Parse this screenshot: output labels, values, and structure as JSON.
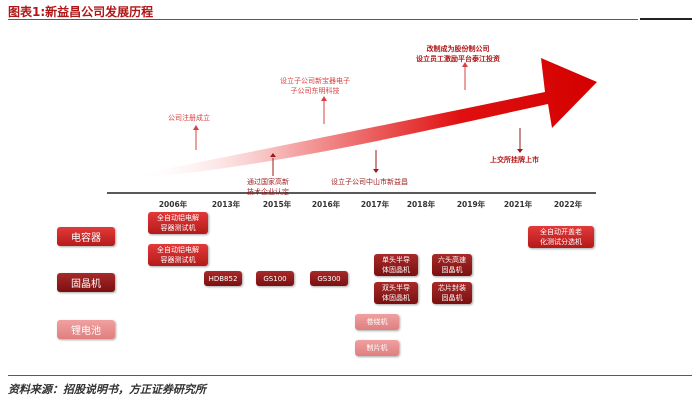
{
  "title": "图表1:新益昌公司发展历程",
  "source": "资料来源：招股说明书，方正证券研究所",
  "colors": {
    "accent": "#cc2a2a",
    "arrow_dark": "#d40000",
    "arrow_light": "#fbeaea",
    "pink": "#e88c8c",
    "maroon": "#8b1414"
  },
  "timeline": {
    "years": [
      "2006年",
      "2013年",
      "2015年",
      "2016年",
      "2017年",
      "2018年",
      "2019年",
      "2021年",
      "2022年"
    ],
    "annotations": {
      "registered": "公司注册成立",
      "subsidiary_dongming": "设立子公司新宝器电子\n子公司东明科技",
      "national_hightech": "通过国家高新\n技术企业认定",
      "subsidiary_zhongshan": "设立子公司中山市新益昌",
      "joint_stock": "改制成为股份制公司\n设立员工激励平台泰江投资",
      "listing": "上交所挂牌上市"
    }
  },
  "categories": {
    "capacitor": "电容器",
    "die_bonder": "固晶机",
    "lithium": "锂电池"
  },
  "products": {
    "cap_2006_a": "全自动铝电解\n容器测试机",
    "cap_2006_b": "全自动铝电解\n容器测试机",
    "cap_2022": "全自动开盖老\n化测试分选机",
    "hdb852": "HDB852",
    "gs100": "GS100",
    "gs300": "GS300",
    "single_head": "单头半导\n体固晶机",
    "double_head": "双头半导\n体固晶机",
    "six_head": "六头高速\n固晶机",
    "chip_sorter": "芯片封装\n固晶机",
    "winding": "卷绕机",
    "sheet": "制片机"
  }
}
